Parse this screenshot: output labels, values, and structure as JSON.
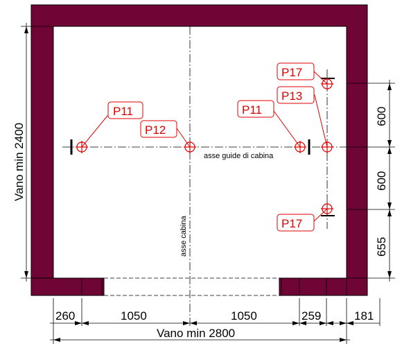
{
  "labels": {
    "guide_axis": "asse guide di cabina",
    "car_axis": "asse cabina",
    "width_total": "Vano min 2800",
    "height_total": "Vano min 2400"
  },
  "dimensions": {
    "bottom": [
      "260",
      "1050",
      "1050",
      "259",
      "181"
    ],
    "right": [
      "600",
      "600",
      "655"
    ]
  },
  "tags": {
    "p11_left": "P11",
    "p12": "P12",
    "p11_right": "P11",
    "p17_top": "P17",
    "p13": "P13",
    "p17_bottom": "P17"
  },
  "colors": {
    "wall": "#6e0534",
    "marker": "#e00000"
  }
}
